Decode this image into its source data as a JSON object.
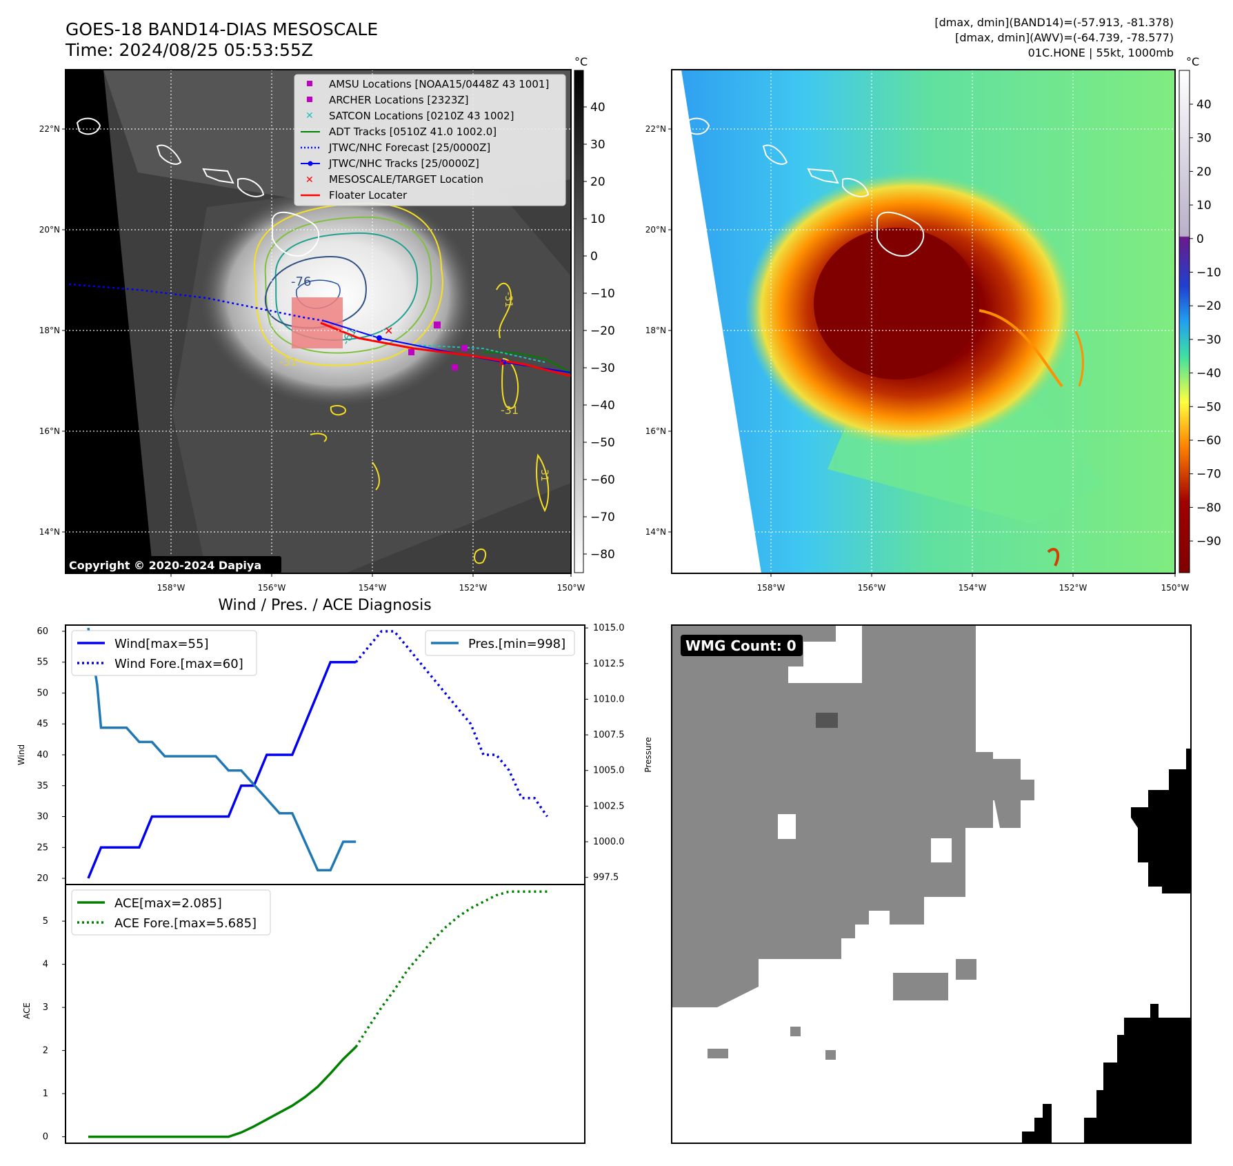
{
  "header": {
    "title_line1": "GOES-18 BAND14-DIAS MESOSCALE",
    "title_line2": "Time: 2024/08/25 05:53:55Z",
    "info_line1": "[dmax, dmin](BAND14)=(-57.913, -81.378)",
    "info_line2": "[dmax, dmin](AWV)=(-64.739, -78.577)",
    "info_line3": "01C.HONE | 55kt, 1000mb"
  },
  "map": {
    "lat_labels": [
      "22°N",
      "20°N",
      "18°N",
      "16°N",
      "14°N"
    ],
    "lon_labels": [
      "158°W",
      "156°W",
      "154°W",
      "152°W",
      "150°W"
    ],
    "copyright": "Copyright © 2020-2024 Dapiya",
    "contour_labels": [
      "-76",
      "-31",
      "-61",
      "-31",
      "-31",
      "-31"
    ],
    "colors": {
      "amsu": "#c000c0",
      "archer": "#c000c0",
      "satcon": "#20c0c0",
      "adt": "#008000",
      "forecast": "#0000ff",
      "track": "#0000ff",
      "target": "#ff0000",
      "floater": "#ff0000"
    }
  },
  "legend": {
    "amsu": "AMSU Locations [NOAA15/0448Z 43 1001]",
    "archer": "ARCHER Locations [2323Z]",
    "satcon": "SATCON Locations [0210Z 43 1002]",
    "adt": "ADT Tracks [0510Z 41.0 1002.0]",
    "forecast": "JTWC/NHC Forecast [25/0000Z]",
    "tracks": "JTWC/NHC Tracks [25/0000Z]",
    "target": "MESOSCALE/TARGET Location",
    "floater": "Floater Locater"
  },
  "colorbar_gray": {
    "unit": "°C",
    "ticks": [
      "40",
      "30",
      "20",
      "10",
      "0",
      "−10",
      "−20",
      "−30",
      "−40",
      "−50",
      "−60",
      "−70",
      "−80"
    ]
  },
  "colorbar_color": {
    "unit": "°C",
    "ticks": [
      "40",
      "30",
      "20",
      "10",
      "0",
      "−10",
      "−20",
      "−30",
      "−40",
      "−50",
      "−60",
      "−70",
      "−80",
      "−90"
    ]
  },
  "diag": {
    "title": "Wind / Pres. / ACE Diagnosis",
    "wmg": "WMG Count: 0"
  },
  "chart_data": [
    {
      "type": "line",
      "title": "Wind / Pres. / ACE Diagnosis",
      "ylabel": "Wind",
      "ylabel2": "Pressure",
      "ylim": [
        19,
        61
      ],
      "y2lim": [
        997,
        1015.2
      ],
      "yticks": [
        "60",
        "55",
        "50",
        "45",
        "40",
        "35",
        "30",
        "25",
        "20"
      ],
      "y2ticks": [
        "1015.0",
        "1012.5",
        "1010.0",
        "1007.5",
        "1005.0",
        "1002.5",
        "1000.0",
        "997.5"
      ],
      "xlim": [
        0,
        37
      ],
      "series": [
        {
          "name": "Wind[max=55]",
          "axis": "left",
          "color": "#0000ee",
          "style": "solid",
          "x": [
            0,
            1,
            2,
            3,
            4,
            5,
            6,
            7,
            8,
            9,
            10,
            11,
            12,
            13,
            14,
            15,
            16,
            17,
            18,
            19,
            20,
            21
          ],
          "y": [
            20,
            25,
            25,
            25,
            25,
            30,
            30,
            30,
            30,
            30,
            30,
            30,
            35,
            35,
            40,
            40,
            40,
            45,
            50,
            55,
            55,
            55
          ]
        },
        {
          "name": "Wind Fore.[max=60]",
          "axis": "left",
          "color": "#0000ee",
          "style": "dotted",
          "x": [
            21,
            22,
            23,
            24,
            25,
            26,
            27,
            28,
            29,
            30,
            31,
            32,
            33,
            34,
            35,
            36
          ],
          "y": [
            55,
            57.5,
            60,
            60,
            57.5,
            55,
            52.5,
            50,
            47.5,
            45,
            40,
            40,
            37.5,
            33,
            33,
            30
          ]
        },
        {
          "name": "Pres.[min=998]",
          "axis": "right",
          "color": "#1f77b4",
          "style": "solid",
          "x": [
            0,
            0.7,
            1,
            2,
            3,
            4,
            5,
            6,
            7,
            8,
            9,
            10,
            11,
            12,
            13,
            14,
            15,
            16,
            17,
            18,
            19,
            20,
            21
          ],
          "y": [
            1015,
            1011,
            1008,
            1008,
            1008,
            1007,
            1007,
            1006,
            1006,
            1006,
            1006,
            1006,
            1005,
            1005,
            1004,
            1003,
            1002,
            1002,
            1000,
            998,
            998,
            1000,
            1000
          ]
        }
      ]
    },
    {
      "type": "line",
      "ylabel": "ACE",
      "ylim": [
        -0.15,
        5.85
      ],
      "yticks": [
        "5",
        "4",
        "3",
        "2",
        "1",
        "0"
      ],
      "xlim": [
        0,
        37
      ],
      "series": [
        {
          "name": "ACE[max=2.085]",
          "color": "#008000",
          "style": "solid",
          "x": [
            0,
            3,
            6,
            9,
            11,
            12,
            13,
            14,
            15,
            16,
            17,
            18,
            19,
            20,
            21
          ],
          "y": [
            0,
            0,
            0,
            0,
            0,
            0.1,
            0.24,
            0.4,
            0.56,
            0.72,
            0.92,
            1.16,
            1.47,
            1.8,
            2.085
          ]
        },
        {
          "name": "ACE Fore.[max=5.685]",
          "color": "#008000",
          "style": "dotted",
          "x": [
            21,
            22,
            23,
            24,
            25,
            26,
            27,
            28,
            29,
            30,
            31,
            32,
            33,
            34,
            35,
            36
          ],
          "y": [
            2.085,
            2.55,
            3.0,
            3.4,
            3.85,
            4.2,
            4.55,
            4.85,
            5.1,
            5.3,
            5.45,
            5.6,
            5.685,
            5.685,
            5.685,
            5.685
          ]
        }
      ]
    }
  ]
}
